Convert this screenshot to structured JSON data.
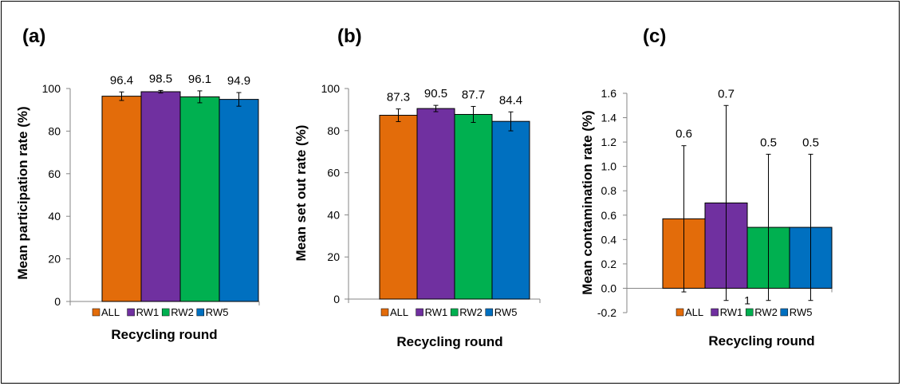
{
  "chart_data": [
    {
      "panel": "(a)",
      "type": "bar",
      "categories": [
        "ALL",
        "RW1",
        "RW2",
        "RW5"
      ],
      "values": [
        96.4,
        98.5,
        96.1,
        94.9
      ],
      "error": [
        2.0,
        0.6,
        2.8,
        3.2
      ],
      "value_labels": [
        "96.4",
        "98.5",
        "96.1",
        "94.9"
      ],
      "colors": [
        "#E36C0A",
        "#7030A0",
        "#00B050",
        "#0070C0"
      ],
      "xlabel": "Recycling round",
      "ylabel": "Mean participation rate (%)",
      "ylim": [
        0,
        100
      ],
      "yticks": [
        0,
        20,
        40,
        60,
        80,
        100
      ],
      "ytick_labels": [
        "0",
        "20",
        "40",
        "60",
        "80",
        "100"
      ],
      "grid": false,
      "legend": "bottom"
    },
    {
      "panel": "(b)",
      "type": "bar",
      "categories": [
        "ALL",
        "RW1",
        "RW2",
        "RW5"
      ],
      "values": [
        87.3,
        90.5,
        87.7,
        84.4
      ],
      "error": [
        3.0,
        1.5,
        3.8,
        4.5
      ],
      "value_labels": [
        "87.3",
        "90.5",
        "87.7",
        "84.4"
      ],
      "colors": [
        "#E36C0A",
        "#7030A0",
        "#00B050",
        "#0070C0"
      ],
      "xlabel": "Recycling round",
      "ylabel": "Mean set out rate (%)",
      "ylim": [
        0,
        100
      ],
      "yticks": [
        0,
        20,
        40,
        60,
        80,
        100
      ],
      "ytick_labels": [
        "0",
        "20",
        "40",
        "60",
        "80",
        "100"
      ],
      "grid": false,
      "legend": "bottom"
    },
    {
      "panel": "(c)",
      "type": "bar",
      "categories": [
        "ALL",
        "RW1",
        "RW2",
        "RW5"
      ],
      "values": [
        0.57,
        0.7,
        0.5,
        0.5
      ],
      "error": [
        0.6,
        0.8,
        0.6,
        0.6
      ],
      "value_labels": [
        "0.6",
        "0.7",
        "0.5",
        "0.5"
      ],
      "colors": [
        "#E36C0A",
        "#7030A0",
        "#00B050",
        "#0070C0"
      ],
      "xlabel": "Recycling round",
      "ylabel": "Mean contamination rate (%)",
      "ylim": [
        -0.2,
        1.6
      ],
      "yticks": [
        -0.2,
        0,
        0.2,
        0.4,
        0.6,
        0.8,
        1.0,
        1.2,
        1.4,
        1.6
      ],
      "ytick_labels": [
        "-0.2",
        "0.0",
        "0.2",
        "0.4",
        "0.6",
        "0.8",
        "1.0",
        "1.2",
        "1.4",
        "1.6"
      ],
      "x_tick_label": "1",
      "grid": false,
      "legend": "bottom"
    }
  ]
}
